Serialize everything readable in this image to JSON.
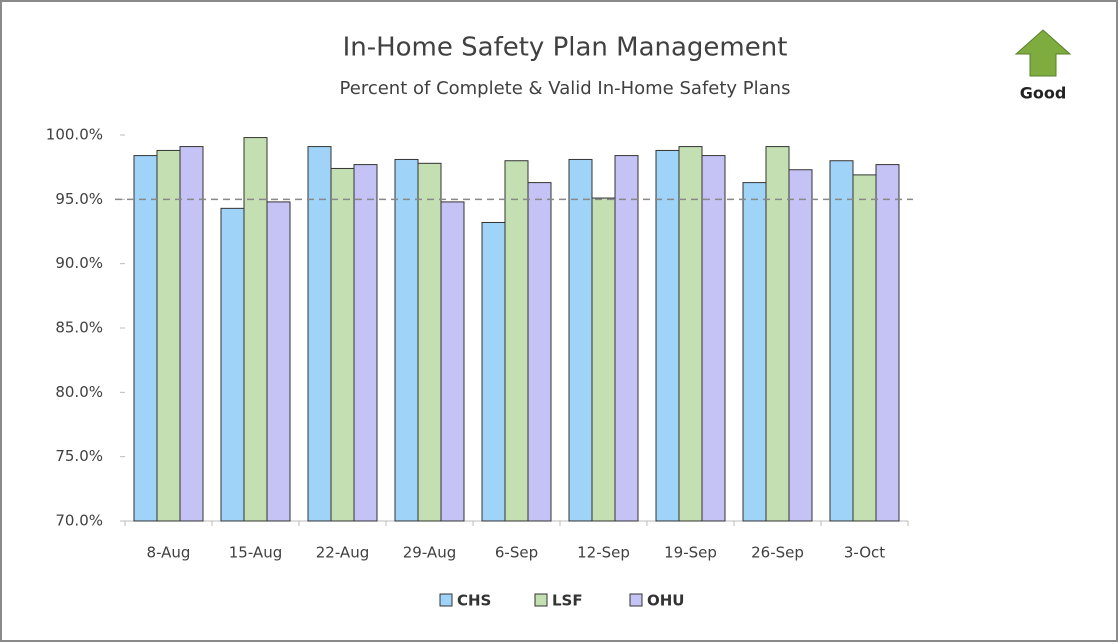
{
  "chart_data": {
    "type": "bar",
    "title": "In-Home Safety Plan Management",
    "subtitle": "Percent of Complete & Valid In-Home Safety Plans",
    "annotation": "Good",
    "categories": [
      "8-Aug",
      "15-Aug",
      "22-Aug",
      "29-Aug",
      "6-Sep",
      "12-Sep",
      "19-Sep",
      "26-Sep",
      "3-Oct"
    ],
    "series": [
      {
        "name": "CHS",
        "color": "#9fd3f7",
        "values": [
          98.4,
          94.3,
          99.1,
          98.1,
          93.2,
          98.1,
          98.8,
          96.3,
          98.0
        ]
      },
      {
        "name": "LSF",
        "color": "#c4e0b2",
        "values": [
          98.8,
          99.8,
          97.4,
          97.8,
          98.0,
          95.1,
          99.1,
          99.1,
          96.9
        ]
      },
      {
        "name": "OHU",
        "color": "#c5c3f5",
        "values": [
          99.1,
          94.8,
          97.7,
          94.8,
          96.3,
          98.4,
          98.4,
          97.3,
          97.7
        ]
      }
    ],
    "target": 95,
    "ylim": [
      70,
      100
    ],
    "yticks": [
      {
        "value": 70,
        "label": "70.0%"
      },
      {
        "value": 75,
        "label": "75.0%"
      },
      {
        "value": 80,
        "label": "80.0%"
      },
      {
        "value": 85,
        "label": "85.0%"
      },
      {
        "value": 90,
        "label": "90.0%"
      },
      {
        "value": 95,
        "label": "95.0%"
      },
      {
        "value": 100,
        "label": "100.0%"
      }
    ],
    "legend": "bottom"
  }
}
